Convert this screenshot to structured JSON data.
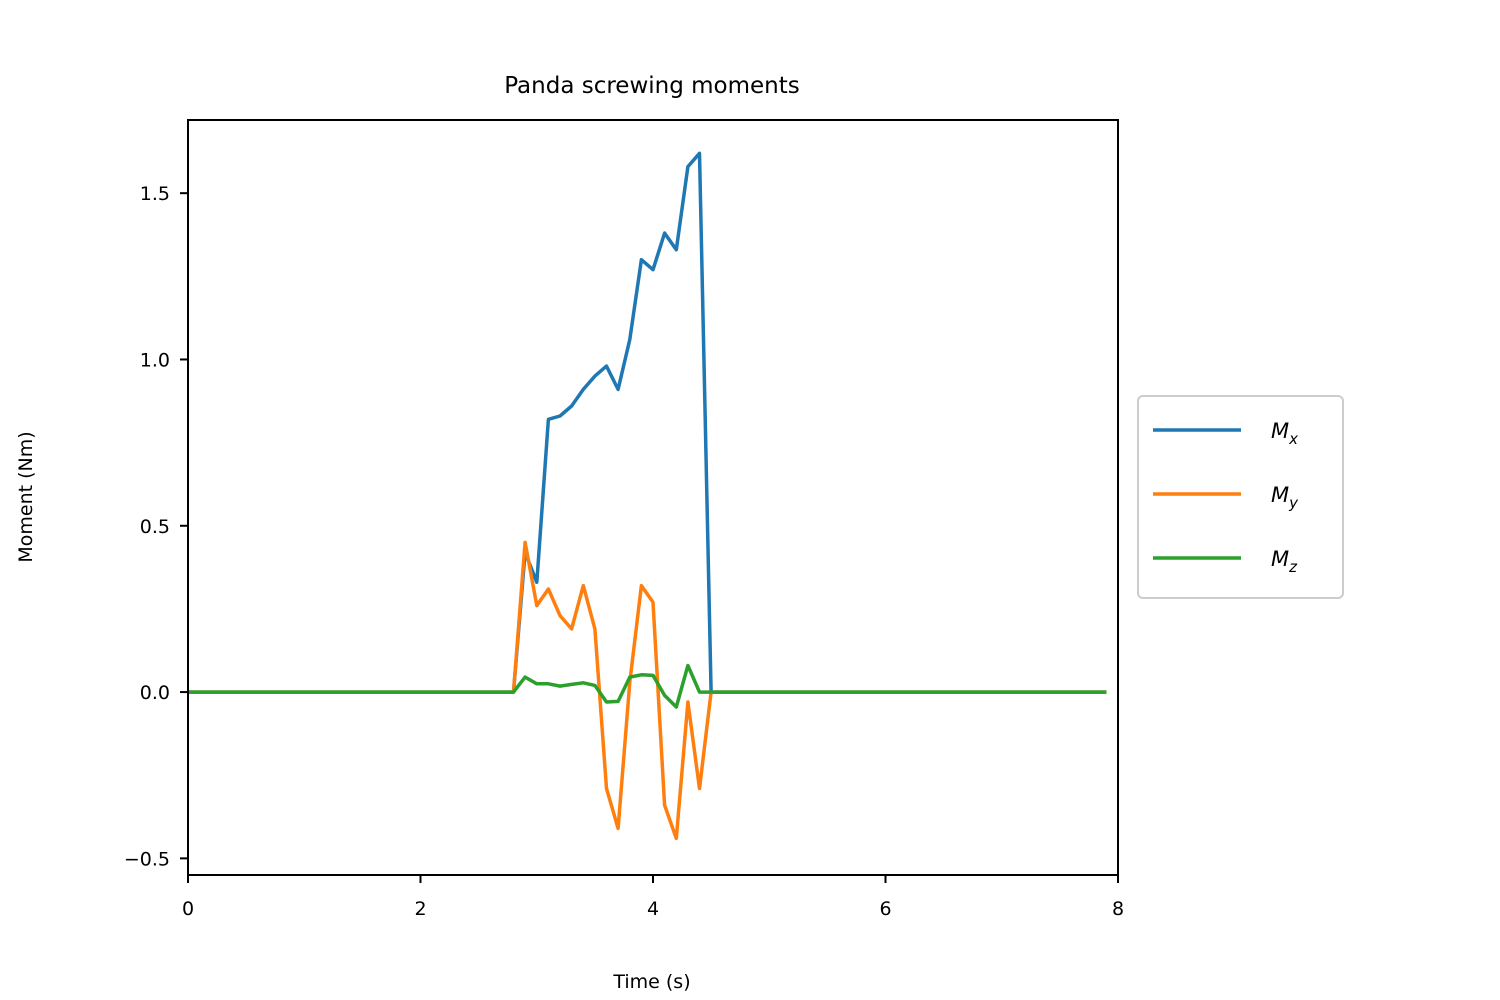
{
  "chart_data": {
    "type": "line",
    "title": "Panda screwing moments",
    "xlabel": "Time (s)",
    "ylabel": "Moment (Nm)",
    "xlim": [
      0,
      8
    ],
    "ylim": [
      -0.55,
      1.72
    ],
    "xticks": [
      0,
      2,
      4,
      6,
      8
    ],
    "xtick_labels": [
      "0",
      "2",
      "4",
      "6",
      "8"
    ],
    "yticks": [
      -0.5,
      0.0,
      0.5,
      1.0,
      1.5
    ],
    "ytick_labels": [
      "−0.5",
      "0.0",
      "0.5",
      "1.0",
      "1.5"
    ],
    "grid": false,
    "legend_position": "outside right",
    "series": [
      {
        "name": "M",
        "subscript": "x",
        "color": "#1f77b4",
        "x": [
          0,
          2.8,
          2.9,
          3.0,
          3.1,
          3.2,
          3.3,
          3.4,
          3.5,
          3.6,
          3.7,
          3.8,
          3.9,
          4.0,
          4.1,
          4.2,
          4.3,
          4.4,
          4.5,
          7.9
        ],
        "y": [
          0,
          0,
          0.42,
          0.33,
          0.82,
          0.83,
          0.86,
          0.91,
          0.95,
          0.98,
          0.91,
          1.06,
          1.3,
          1.27,
          1.38,
          1.33,
          1.58,
          1.62,
          0,
          0
        ]
      },
      {
        "name": "M",
        "subscript": "y",
        "color": "#ff7f0e",
        "x": [
          0,
          2.8,
          2.9,
          3.0,
          3.1,
          3.2,
          3.3,
          3.4,
          3.5,
          3.6,
          3.7,
          3.8,
          3.9,
          4.0,
          4.1,
          4.2,
          4.3,
          4.4,
          4.5,
          7.9
        ],
        "y": [
          0,
          0,
          0.45,
          0.26,
          0.31,
          0.23,
          0.19,
          0.32,
          0.19,
          -0.29,
          -0.41,
          0.03,
          0.32,
          0.27,
          -0.34,
          -0.44,
          -0.03,
          -0.29,
          0,
          0
        ]
      },
      {
        "name": "M",
        "subscript": "z",
        "color": "#2ca02c",
        "x": [
          0,
          2.8,
          2.9,
          3.0,
          3.1,
          3.2,
          3.3,
          3.4,
          3.5,
          3.6,
          3.7,
          3.8,
          3.9,
          4.0,
          4.1,
          4.2,
          4.3,
          4.4,
          4.5,
          7.9
        ],
        "y": [
          0,
          0,
          0.045,
          0.025,
          0.025,
          0.018,
          0.023,
          0.028,
          0.02,
          -0.03,
          -0.028,
          0.045,
          0.052,
          0.05,
          -0.01,
          -0.045,
          0.08,
          0,
          0,
          0
        ]
      }
    ]
  }
}
